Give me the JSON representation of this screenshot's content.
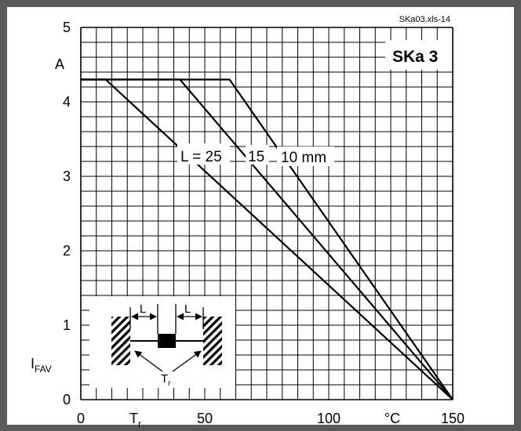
{
  "chart_data": {
    "type": "line",
    "file_tag": "SKa03.xls-14",
    "device_label": "SKa 3",
    "ylabel_unit": "A",
    "ylabel_symbol": "I",
    "ylabel_subscript": "FAV",
    "xlabel_symbol": "T",
    "xlabel_subscript": "r",
    "xlabel_unit": "°C",
    "xlim": [
      0,
      150
    ],
    "ylim": [
      0,
      5
    ],
    "x_ticks": [
      0,
      50,
      100,
      150
    ],
    "y_ticks": [
      0,
      1,
      2,
      3,
      4,
      5
    ],
    "grid": true,
    "curve_label_prefix": "L = 25",
    "series": [
      {
        "name": "25",
        "x": [
          0,
          10,
          150
        ],
        "y": [
          4.3,
          4.3,
          0
        ]
      },
      {
        "name": "15",
        "x": [
          0,
          40,
          150
        ],
        "y": [
          4.3,
          4.3,
          0
        ]
      },
      {
        "name": "10 mm",
        "x": [
          0,
          60,
          150
        ],
        "y": [
          4.3,
          4.3,
          0
        ]
      }
    ],
    "inset": {
      "label_left": "L",
      "label_right": "L",
      "label_bottom_symbol": "T",
      "label_bottom_subscript": "r"
    }
  },
  "colors": {
    "frame": "#5a5a5a",
    "grid": "#000000",
    "curve": "#000000",
    "background": "#ffffff"
  }
}
